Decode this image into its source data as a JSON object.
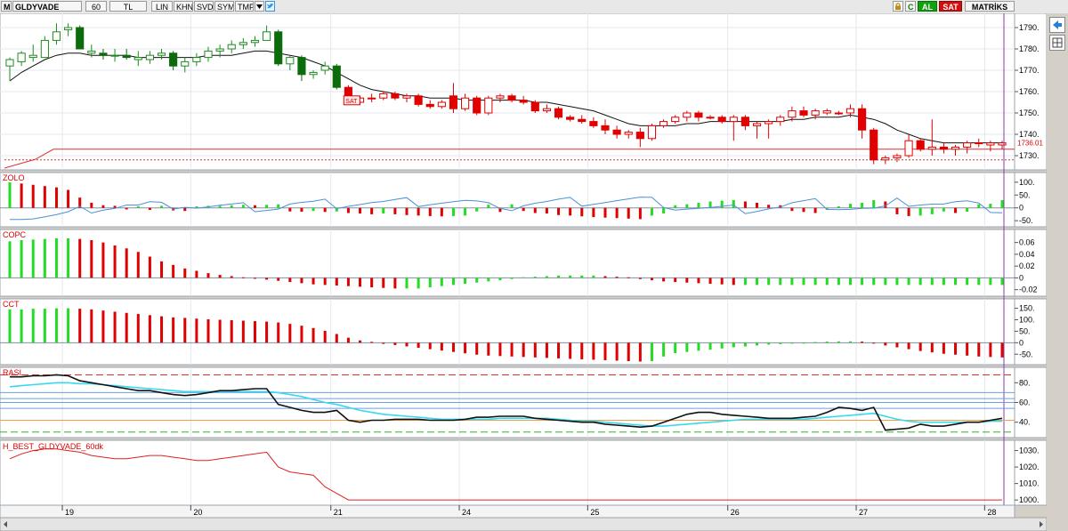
{
  "toolbar": {
    "m_label": "M",
    "symbol": "GLDYVADE",
    "period": "60",
    "currency": "TL",
    "modes": [
      "LIN",
      "KHN",
      "SVD",
      "SYM",
      "TMP"
    ],
    "c_label": "C",
    "al_label": "AL",
    "sat_label": "SAT",
    "matriks_label": "MATRİKS",
    "icons": [
      "chevron-down-icon",
      "twitter-icon",
      "lock-icon",
      "arrow-left-icon",
      "grid-icon"
    ],
    "colors": {
      "al_bg": "#10a010",
      "sat_bg": "#d01010"
    }
  },
  "price_panel": {
    "y_ticks": [
      "1790.",
      "1780.",
      "1770.",
      "1760.",
      "1750.",
      "1740.",
      "1730."
    ],
    "last_price": "1736.01",
    "signal_label": "SAT"
  },
  "panels": [
    {
      "label": "ZOLO",
      "ticks": [
        "100.",
        "50.",
        "0",
        "-50."
      ]
    },
    {
      "label": "COPC",
      "ticks": [
        "0.06",
        "0.04",
        "0.02",
        "0",
        "-0.02"
      ]
    },
    {
      "label": "CCT",
      "ticks": [
        "150.",
        "100.",
        "50.",
        "0",
        "-50."
      ]
    },
    {
      "label": "RASI",
      "ticks": [
        "80.",
        "60.",
        "40."
      ]
    },
    {
      "label": "H_BEST_GLDYVADE_60dk",
      "ticks": [
        "1030.",
        "1020.",
        "1010.",
        "1000."
      ]
    }
  ],
  "x_axis": {
    "days": [
      "19",
      "20",
      "21",
      "24",
      "25",
      "26",
      "27",
      "28"
    ]
  },
  "chart_data": {
    "type": "candlestick",
    "symbol": "GLDYVADE",
    "interval": "60",
    "price_range": [
      1725,
      1795
    ],
    "last_price": 1736.01,
    "support_line": 1733,
    "candles": [
      [
        1772,
        1776,
        1765,
        1775,
        1
      ],
      [
        1774,
        1779,
        1772,
        1778,
        1
      ],
      [
        1777,
        1782,
        1774,
        1776,
        1
      ],
      [
        1776,
        1786,
        1776,
        1784,
        1
      ],
      [
        1784,
        1792,
        1782,
        1788,
        1
      ],
      [
        1789,
        1792,
        1786,
        1790,
        1
      ],
      [
        1790,
        1791,
        1780,
        1780,
        0
      ],
      [
        1779,
        1782,
        1776,
        1778,
        1
      ],
      [
        1778,
        1780,
        1775,
        1777,
        0
      ],
      [
        1777,
        1780,
        1774,
        1777,
        1
      ],
      [
        1777,
        1780,
        1775,
        1776,
        0
      ],
      [
        1776,
        1779,
        1772,
        1775,
        1
      ],
      [
        1775,
        1779,
        1773,
        1777,
        1
      ],
      [
        1777,
        1780,
        1775,
        1778,
        1
      ],
      [
        1778,
        1779,
        1770,
        1772,
        0
      ],
      [
        1772,
        1776,
        1769,
        1774,
        1
      ],
      [
        1774,
        1778,
        1772,
        1776,
        1
      ],
      [
        1776,
        1781,
        1774,
        1779,
        1
      ],
      [
        1779,
        1782,
        1776,
        1780,
        1
      ],
      [
        1780,
        1784,
        1778,
        1782,
        1
      ],
      [
        1782,
        1785,
        1780,
        1783,
        1
      ],
      [
        1783,
        1786,
        1781,
        1784,
        1
      ],
      [
        1784,
        1791,
        1784,
        1788,
        1
      ],
      [
        1788,
        1789,
        1772,
        1773,
        0
      ],
      [
        1773,
        1777,
        1770,
        1776,
        1
      ],
      [
        1776,
        1777,
        1765,
        1768,
        0
      ],
      [
        1768,
        1770,
        1766,
        1769,
        1
      ],
      [
        1770,
        1774,
        1768,
        1772,
        1
      ],
      [
        1772,
        1773,
        1761,
        1762,
        0
      ],
      [
        1762,
        1763,
        1754,
        1755,
        0
      ],
      [
        1755,
        1758,
        1754,
        1757,
        1
      ],
      [
        1757,
        1759,
        1755,
        1757,
        1
      ],
      [
        1757,
        1760,
        1756,
        1759,
        1
      ],
      [
        1759,
        1760,
        1756,
        1757,
        0
      ],
      [
        1757,
        1759,
        1755,
        1758,
        1
      ],
      [
        1758,
        1759,
        1753,
        1754,
        0
      ],
      [
        1754,
        1756,
        1752,
        1753,
        0
      ],
      [
        1753,
        1756,
        1752,
        1755,
        1
      ],
      [
        1758,
        1764,
        1750,
        1752,
        0
      ],
      [
        1752,
        1759,
        1751,
        1757,
        1
      ],
      [
        1757,
        1758,
        1749,
        1750,
        0
      ],
      [
        1750,
        1758,
        1749,
        1757,
        1
      ],
      [
        1757,
        1759,
        1755,
        1758,
        1
      ],
      [
        1758,
        1759,
        1755,
        1756,
        0
      ],
      [
        1756,
        1758,
        1754,
        1755,
        0
      ],
      [
        1755,
        1756,
        1750,
        1751,
        0
      ],
      [
        1751,
        1754,
        1750,
        1752,
        1
      ],
      [
        1752,
        1753,
        1747,
        1748,
        0
      ],
      [
        1748,
        1749,
        1746,
        1747,
        0
      ],
      [
        1747,
        1749,
        1745,
        1746,
        0
      ],
      [
        1746,
        1748,
        1743,
        1744,
        0
      ],
      [
        1744,
        1747,
        1740,
        1742,
        0
      ],
      [
        1742,
        1744,
        1738,
        1740,
        0
      ],
      [
        1740,
        1742,
        1738,
        1741,
        1
      ],
      [
        1741,
        1743,
        1734,
        1738,
        0
      ],
      [
        1738,
        1745,
        1737,
        1744,
        1
      ],
      [
        1744,
        1747,
        1743,
        1746,
        1
      ],
      [
        1746,
        1749,
        1745,
        1748,
        1
      ],
      [
        1748,
        1751,
        1746,
        1750,
        1
      ],
      [
        1750,
        1751,
        1746,
        1748,
        0
      ],
      [
        1748,
        1749,
        1747,
        1748,
        0
      ],
      [
        1748,
        1749,
        1745,
        1746,
        0
      ],
      [
        1746,
        1749,
        1737,
        1748,
        1
      ],
      [
        1748,
        1749,
        1742,
        1744,
        0
      ],
      [
        1744,
        1746,
        1738,
        1745,
        1
      ],
      [
        1745,
        1747,
        1738,
        1746,
        1
      ],
      [
        1746,
        1749,
        1744,
        1748,
        1
      ],
      [
        1748,
        1753,
        1746,
        1751,
        1
      ],
      [
        1751,
        1753,
        1748,
        1749,
        0
      ],
      [
        1749,
        1752,
        1747,
        1751,
        1
      ],
      [
        1751,
        1752,
        1749,
        1750,
        1
      ],
      [
        1750,
        1751,
        1749,
        1750,
        0
      ],
      [
        1750,
        1754,
        1748,
        1752,
        1
      ],
      [
        1752,
        1754,
        1738,
        1742,
        0
      ],
      [
        1742,
        1743,
        1726,
        1728,
        0
      ],
      [
        1728,
        1730,
        1726,
        1729,
        1
      ],
      [
        1729,
        1731,
        1727,
        1730,
        1
      ],
      [
        1730,
        1740,
        1729,
        1737,
        1
      ],
      [
        1737,
        1738,
        1732,
        1733,
        0
      ],
      [
        1733,
        1747,
        1730,
        1734,
        1
      ],
      [
        1734,
        1736,
        1731,
        1733,
        0
      ],
      [
        1733,
        1735,
        1730,
        1734,
        1
      ],
      [
        1734,
        1737,
        1731,
        1736,
        1
      ],
      [
        1736,
        1738,
        1734,
        1736,
        0
      ],
      [
        1736,
        1737,
        1732,
        1735,
        1
      ],
      [
        1735,
        1737,
        1733,
        1736,
        1
      ]
    ],
    "moving_average": [
      1765,
      1769,
      1772,
      1775,
      1777,
      1778,
      1778,
      1777,
      1777,
      1777,
      1777,
      1776,
      1776,
      1776,
      1776,
      1776,
      1776,
      1777,
      1777,
      1777,
      1778,
      1779,
      1779,
      1778,
      1777,
      1776,
      1774,
      1772,
      1769,
      1766,
      1763,
      1761,
      1760,
      1759,
      1758,
      1758,
      1757,
      1757,
      1757,
      1756,
      1756,
      1756,
      1756,
      1756,
      1756,
      1755,
      1755,
      1754,
      1753,
      1752,
      1751,
      1749,
      1747,
      1745,
      1744,
      1744,
      1744,
      1744,
      1745,
      1745,
      1746,
      1746,
      1746,
      1746,
      1746,
      1746,
      1746,
      1747,
      1747,
      1748,
      1748,
      1748,
      1749,
      1748,
      1747,
      1745,
      1742,
      1740,
      1738,
      1737,
      1736,
      1736,
      1736,
      1736,
      1736,
      1736
    ],
    "zolo_histogram": [
      100,
      95,
      90,
      85,
      80,
      70,
      40,
      20,
      10,
      8,
      -6,
      6,
      -8,
      8,
      -10,
      -12,
      6,
      8,
      8,
      10,
      12,
      10,
      12,
      14,
      -14,
      -15,
      -12,
      -16,
      -14,
      -20,
      -22,
      -25,
      -22,
      -25,
      -28,
      -30,
      -32,
      -33,
      -32,
      -30,
      -14,
      12,
      -16,
      14,
      -12,
      -20,
      -22,
      -28,
      -30,
      -33,
      -36,
      -38,
      -40,
      -42,
      -44,
      -30,
      -22,
      10,
      14,
      20,
      25,
      28,
      30,
      25,
      20,
      12,
      10,
      -12,
      -16,
      -20,
      -8,
      6,
      16,
      20,
      30,
      25,
      -25,
      -32,
      -30,
      -25,
      -14,
      -20,
      -15,
      14,
      16,
      30
    ],
    "copc_histogram": [
      0.062,
      0.064,
      0.065,
      0.066,
      0.067,
      0.067,
      0.066,
      0.064,
      0.06,
      0.055,
      0.05,
      0.044,
      0.036,
      0.028,
      0.022,
      0.016,
      0.012,
      0.008,
      0.005,
      0.003,
      0.001,
      -0.001,
      -0.003,
      -0.005,
      -0.007,
      -0.009,
      -0.011,
      -0.012,
      -0.013,
      -0.014,
      -0.015,
      -0.016,
      -0.017,
      -0.018,
      -0.018,
      -0.018,
      -0.016,
      -0.014,
      -0.012,
      -0.01,
      -0.008,
      -0.006,
      -0.004,
      -0.002,
      0.001,
      0.002,
      0.003,
      0.004,
      0.004,
      0.004,
      0.004,
      0.003,
      0.002,
      0.001,
      -0.002,
      -0.004,
      -0.006,
      -0.007,
      -0.008,
      -0.009,
      -0.01,
      -0.011,
      -0.012,
      -0.012,
      -0.012,
      -0.012,
      -0.012,
      -0.012,
      -0.012,
      -0.012,
      -0.012,
      -0.012,
      -0.012,
      -0.012,
      -0.012,
      -0.012,
      -0.012,
      -0.012,
      -0.012,
      -0.012,
      -0.012,
      -0.012,
      -0.012,
      -0.012,
      -0.012,
      -0.012
    ],
    "cct_histogram": [
      145,
      145,
      148,
      148,
      150,
      150,
      148,
      145,
      140,
      135,
      130,
      125,
      120,
      115,
      110,
      108,
      105,
      102,
      100,
      98,
      96,
      94,
      92,
      88,
      82,
      74,
      64,
      52,
      38,
      22,
      10,
      4,
      -5,
      -10,
      -16,
      -22,
      -28,
      -34,
      -40,
      -46,
      -52,
      -56,
      -58,
      -60,
      -62,
      -64,
      -66,
      -68,
      -70,
      -72,
      -74,
      -76,
      -78,
      -80,
      -82,
      -80,
      -60,
      -45,
      -40,
      -35,
      -30,
      -25,
      -20,
      -16,
      -12,
      -8,
      -6,
      -4,
      -2,
      3,
      5,
      6,
      6,
      5,
      -2,
      -12,
      -20,
      -28,
      -36,
      -42,
      -48,
      -52,
      -56,
      -60,
      -62,
      -64
    ],
    "rasi_line": [
      86,
      86,
      87,
      87,
      88,
      87,
      82,
      80,
      78,
      76,
      74,
      72,
      72,
      70,
      68,
      67,
      68,
      70,
      72,
      72,
      73,
      74,
      74,
      58,
      55,
      52,
      50,
      50,
      52,
      42,
      40,
      42,
      42,
      43,
      43,
      43,
      42,
      42,
      42,
      43,
      45,
      45,
      46,
      46,
      46,
      44,
      43,
      42,
      41,
      40,
      40,
      38,
      37,
      36,
      35,
      36,
      40,
      44,
      48,
      50,
      50,
      48,
      47,
      46,
      45,
      44,
      44,
      44,
      45,
      46,
      50,
      55,
      54,
      52,
      55,
      32,
      33,
      34,
      38,
      36,
      36,
      38,
      40,
      40,
      42,
      44
    ],
    "rasi_signal": [
      76,
      77,
      78,
      79,
      80,
      80,
      79,
      79,
      78,
      77,
      76,
      75,
      74,
      73,
      72,
      71,
      71,
      71,
      71,
      71,
      71,
      71,
      71,
      70,
      68,
      66,
      63,
      60,
      58,
      55,
      52,
      50,
      48,
      47,
      46,
      45,
      44,
      43,
      43,
      43,
      43,
      43,
      44,
      44,
      44,
      44,
      44,
      43,
      42,
      41,
      41,
      40,
      39,
      38,
      37,
      36,
      36,
      37,
      38,
      39,
      40,
      41,
      42,
      43,
      43,
      43,
      43,
      43,
      43,
      44,
      45,
      46,
      47,
      48,
      49,
      46,
      43,
      41,
      40,
      40,
      40,
      40,
      40,
      40,
      41,
      41
    ],
    "h_best_line": [
      1025,
      1028,
      1030,
      1031,
      1031,
      1030,
      1029,
      1027,
      1026,
      1025,
      1025,
      1026,
      1027,
      1027,
      1026,
      1025,
      1024,
      1024,
      1025,
      1026,
      1027,
      1028,
      1029,
      1020,
      1017,
      1016,
      1015,
      1008,
      1004,
      1000,
      1000,
      1000,
      1000,
      1000,
      1000,
      1000,
      1000,
      1000,
      1000,
      1000,
      1000,
      1000,
      1000,
      1000,
      1000,
      1000,
      1000,
      1000,
      1000,
      1000,
      1000,
      1000,
      1000,
      1000,
      1000,
      1000,
      1000,
      1000,
      1000,
      1000,
      1000,
      1000,
      1000,
      1000,
      1000,
      1000,
      1000,
      1000,
      1000,
      1000,
      1000,
      1000,
      1000,
      1000,
      1000,
      1000,
      1000,
      1000,
      1000,
      1000,
      1000,
      1000,
      1000,
      1000,
      1000,
      1000
    ]
  }
}
